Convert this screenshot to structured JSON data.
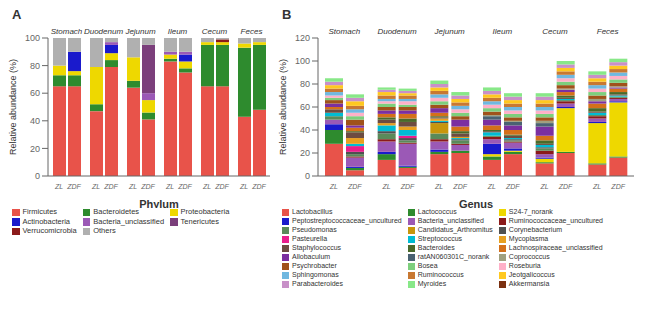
{
  "chart_data": [
    {
      "type": "bar",
      "stacked": true,
      "title": "A",
      "xlabel": "Phylum",
      "ylabel": "Relative abundance (%)",
      "legend": "bottom",
      "categories": [
        "Stomach",
        "Duodenum",
        "Jejunum",
        "Ileum",
        "Cecum",
        "Feces"
      ],
      "stacks": [
        "ZL",
        "ZDF"
      ],
      "ylim": [
        0,
        100
      ],
      "yticks": [
        0,
        20,
        40,
        60,
        80,
        100
      ],
      "series": [
        {
          "name": "Firmicutes",
          "color": "#e8534a",
          "values": {
            "ZL": [
              65,
              47,
              64,
              83,
              65,
              43
            ],
            "ZDF": [
              65,
              79,
              41,
              75,
              65,
              48
            ]
          }
        },
        {
          "name": "Bacteroidetes",
          "color": "#2e8b2e",
          "values": {
            "ZL": [
              8,
              5,
              5,
              2,
              30,
              50
            ],
            "ZDF": [
              8,
              5,
              5,
              3,
              30,
              47
            ]
          }
        },
        {
          "name": "Proteobacteria",
          "color": "#eed800",
          "values": {
            "ZL": [
              7,
              27,
              17,
              3,
              2,
              3
            ],
            "ZDF": [
              3,
              5,
              9,
              5,
              2,
              2
            ]
          }
        },
        {
          "name": "Actinobacteria",
          "color": "#1a1acc",
          "values": {
            "ZL": [
              0,
              0,
              0,
              0,
              0,
              0
            ],
            "ZDF": [
              14,
              6,
              0,
              5,
              0,
              0
            ]
          }
        },
        {
          "name": "Bacteria_unclassified",
          "color": "#9b59b6",
          "values": {
            "ZL": [
              0,
              0,
              0,
              2,
              0,
              0
            ],
            "ZDF": [
              0,
              2,
              5,
              2,
              0,
              0
            ]
          }
        },
        {
          "name": "Tenericutes",
          "color": "#7b3f7b",
          "values": {
            "ZL": [
              0,
              0,
              0,
              0,
              0,
              0
            ],
            "ZDF": [
              0,
              0,
              35,
              0,
              0,
              0
            ]
          }
        },
        {
          "name": "Verrucomicrobia",
          "color": "#8b1a1a",
          "values": {
            "ZL": [
              0,
              0,
              0,
              0,
              0,
              0
            ],
            "ZDF": [
              0,
              0,
              0,
              0,
              2,
              0
            ]
          }
        },
        {
          "name": "Others",
          "color": "#b0b0b0",
          "values": {
            "ZL": [
              20,
              21,
              14,
              10,
              3,
              4
            ],
            "ZDF": [
              10,
              3,
              5,
              10,
              1,
              3
            ]
          }
        }
      ]
    },
    {
      "type": "bar",
      "stacked": true,
      "title": "B",
      "xlabel": "Genus",
      "ylabel": "Relative abundance (%)",
      "legend": "bottom",
      "categories": [
        "Stomach",
        "Duodenum",
        "Jejunum",
        "Ileum",
        "Cecum",
        "Feces"
      ],
      "stacks": [
        "ZL",
        "ZDF"
      ],
      "ylim": [
        0,
        120
      ],
      "yticks": [
        0,
        20,
        40,
        60,
        80,
        100,
        120
      ],
      "series": [
        {
          "name": "Lactobacillus",
          "color": "#e8534a",
          "values": {
            "ZL": [
              28,
              14,
              19,
              14,
              11,
              10
            ],
            "ZDF": [
              5,
              7,
              20,
              19,
              20,
              16
            ]
          }
        },
        {
          "name": "Lactococcus",
          "color": "#2e8b2e",
          "values": {
            "ZL": [
              12,
              5,
              2,
              3,
              1,
              1
            ],
            "ZDF": [
              2,
              1,
              2,
              2,
              1,
              1
            ]
          }
        },
        {
          "name": "S24-7_norank",
          "color": "#eed800",
          "values": {
            "ZL": [
              0,
              0,
              0,
              2,
              3,
              35
            ],
            "ZDF": [
              0,
              0,
              0,
              1,
              38,
              47
            ]
          }
        },
        {
          "name": "Peptostreptococcaceae_uncultured",
          "color": "#1a1acc",
          "values": {
            "ZL": [
              5,
              2,
              2,
              9,
              1,
              1
            ],
            "ZDF": [
              1,
              1,
              0,
              2,
              1,
              1
            ]
          }
        },
        {
          "name": "Bacteria_unclassified",
          "color": "#9b59b6",
          "values": {
            "ZL": [
              4,
              9,
              7,
              4,
              3,
              3
            ],
            "ZDF": [
              8,
              19,
              5,
              5,
              3,
              2
            ]
          }
        },
        {
          "name": "Ruminococcaceae_uncultured",
          "color": "#8b1a1a",
          "values": {
            "ZL": [
              0,
              2,
              2,
              2,
              3,
              2
            ],
            "ZDF": [
              1,
              1,
              1,
              1,
              2,
              1
            ]
          }
        },
        {
          "name": "Pseudomonas",
          "color": "#5a8a5a",
          "values": {
            "ZL": [
              3,
              5,
              5,
              1,
              2,
              1
            ],
            "ZDF": [
              2,
              2,
              3,
              1,
              1,
              1
            ]
          }
        },
        {
          "name": "Candidatus_Arthromitus",
          "color": "#c8960c",
          "values": {
            "ZL": [
              0,
              0,
              9,
              0,
              0,
              0
            ],
            "ZDF": [
              0,
              0,
              0,
              0,
              0,
              0
            ]
          }
        },
        {
          "name": "Corynebacterium",
          "color": "#505050",
          "values": {
            "ZL": [
              0,
              2,
              1,
              0,
              1,
              0
            ],
            "ZDF": [
              2,
              2,
              1,
              1,
              0,
              0
            ]
          }
        },
        {
          "name": "Pasteurella",
          "color": "#e91e8c",
          "values": {
            "ZL": [
              0,
              0,
              0,
              0,
              0,
              0
            ],
            "ZDF": [
              5,
              2,
              0,
              0,
              0,
              0
            ]
          }
        },
        {
          "name": "Streptococcus",
          "color": "#00bcd4",
          "values": {
            "ZL": [
              3,
              5,
              1,
              3,
              2,
              2
            ],
            "ZDF": [
              2,
              5,
              1,
              1,
              1,
              1
            ]
          }
        },
        {
          "name": "Mycoplasma",
          "color": "#e8a020",
          "values": {
            "ZL": [
              0,
              2,
              2,
              0,
              0,
              0
            ],
            "ZDF": [
              5,
              3,
              1,
              0,
              0,
              0
            ]
          }
        },
        {
          "name": "Staphylococcus",
          "color": "#6d4c41",
          "values": {
            "ZL": [
              3,
              3,
              1,
              1,
              1,
              1
            ],
            "ZDF": [
              5,
              4,
              3,
              2,
              1,
              1
            ]
          }
        },
        {
          "name": "Bacteroides",
          "color": "#4a6a2a",
          "values": {
            "ZL": [
              0,
              2,
              1,
              1,
              3,
              3
            ],
            "ZDF": [
              1,
              3,
              2,
              1,
              2,
              2
            ]
          }
        },
        {
          "name": "Lachnospiraceae_unclassified",
          "color": "#d4701a",
          "values": {
            "ZL": [
              2,
              3,
              3,
              4,
              4,
              4
            ],
            "ZDF": [
              3,
              4,
              4,
              4,
              3,
              3
            ]
          }
        },
        {
          "name": "Allobaculum",
          "color": "#7b2fa0",
          "values": {
            "ZL": [
              3,
              3,
              4,
              5,
              8,
              2
            ],
            "ZDF": [
              2,
              3,
              6,
              4,
              2,
              1
            ]
          }
        },
        {
          "name": "ratAN060301C_norank",
          "color": "#4a6272",
          "values": {
            "ZL": [
              0,
              0,
              0,
              3,
              3,
              0
            ],
            "ZDF": [
              0,
              0,
              0,
              3,
              0,
              0
            ]
          }
        },
        {
          "name": "Coprococcus",
          "color": "#a0a080",
          "values": {
            "ZL": [
              0,
              0,
              0,
              1,
              2,
              2
            ],
            "ZDF": [
              0,
              0,
              0,
              1,
              1,
              1
            ]
          }
        },
        {
          "name": "Psychrobacter",
          "color": "#a0521a",
          "values": {
            "ZL": [
              3,
              3,
              3,
              3,
              3,
              3
            ],
            "ZDF": [
              5,
              3,
              3,
              3,
              3,
              3
            ]
          }
        },
        {
          "name": "Bosea",
          "color": "#7dcf7d",
          "values": {
            "ZL": [
              2,
              3,
              3,
              3,
              3,
              3
            ],
            "ZDF": [
              3,
              2,
              3,
              3,
              3,
              3
            ]
          }
        },
        {
          "name": "Roseburia",
          "color": "#ffb0c8",
          "values": {
            "ZL": [
              2,
              2,
              3,
              3,
              3,
              3
            ],
            "ZDF": [
              3,
              3,
              3,
              3,
              3,
              3
            ]
          }
        },
        {
          "name": "Sphingomonas",
          "color": "#70b8e0",
          "values": {
            "ZL": [
              3,
              2,
              3,
              3,
              3,
              3
            ],
            "ZDF": [
              3,
              2,
              3,
              3,
              3,
              3
            ]
          }
        },
        {
          "name": "Ruminococcus",
          "color": "#c87832",
          "values": {
            "ZL": [
              3,
              3,
              3,
              3,
              3,
              3
            ],
            "ZDF": [
              3,
              3,
              3,
              3,
              3,
              3
            ]
          }
        },
        {
          "name": "Jeotgalicoccus",
          "color": "#ffc820",
          "values": {
            "ZL": [
              3,
              3,
              3,
              3,
              3,
              3
            ],
            "ZDF": [
              4,
              2,
              3,
              3,
              3,
              3
            ]
          }
        },
        {
          "name": "Parabacteroides",
          "color": "#c890c8",
          "values": {
            "ZL": [
              3,
              2,
              3,
              3,
              3,
              3
            ],
            "ZDF": [
              3,
              2,
              3,
              3,
              3,
              3
            ]
          }
        },
        {
          "name": "Myroides",
          "color": "#88e888",
          "values": {
            "ZL": [
              3,
              2,
              3,
              3,
              3,
              3
            ],
            "ZDF": [
              3,
              2,
              3,
              3,
              3,
              3
            ]
          }
        },
        {
          "name": "Akkermansia",
          "color": "#7b3010",
          "values": {
            "ZL": [
              0,
              0,
              0,
              0,
              0,
              0
            ],
            "ZDF": [
              0,
              0,
              0,
              0,
              0,
              0
            ]
          }
        }
      ]
    }
  ]
}
